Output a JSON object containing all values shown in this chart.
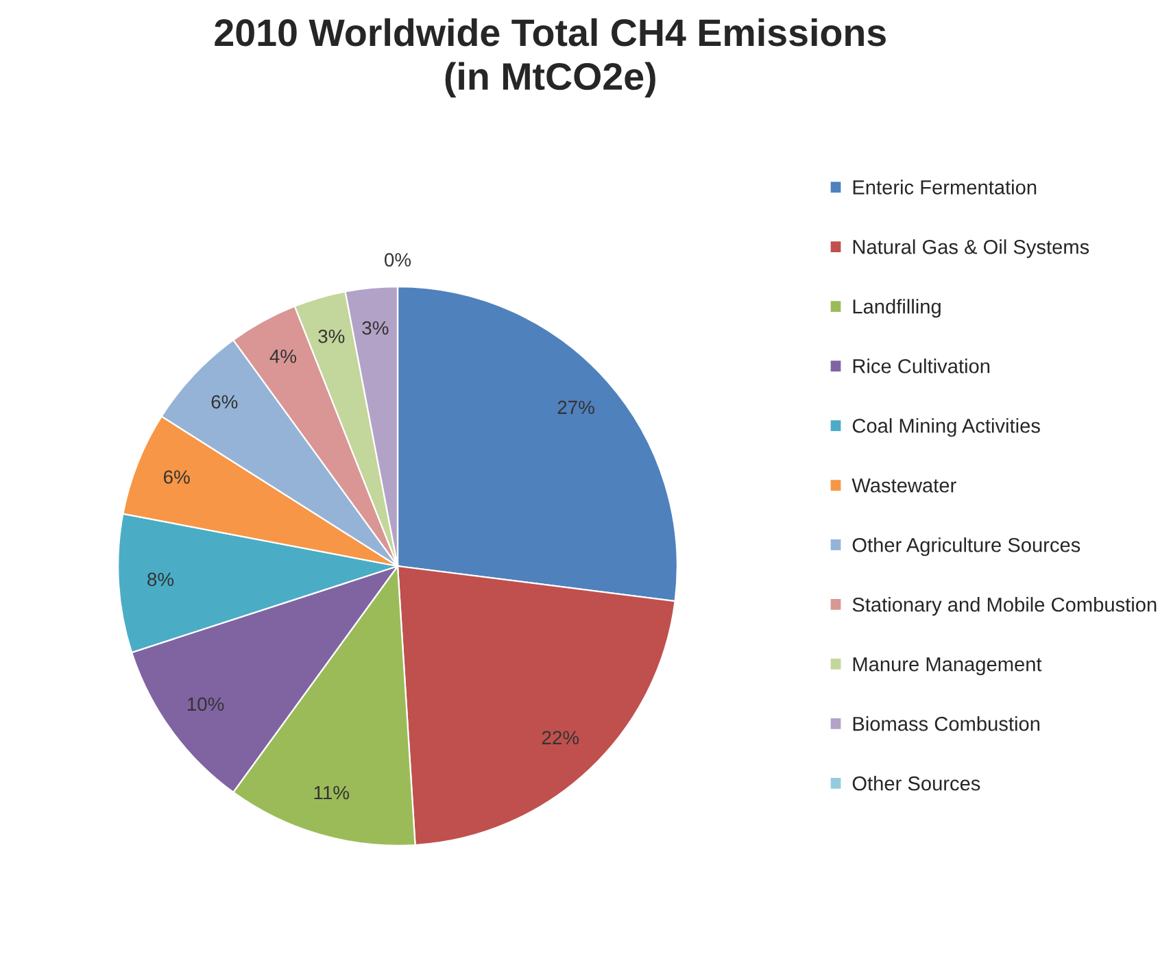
{
  "chart_data": {
    "type": "pie",
    "title": "2010 Worldwide Total CH4 Emissions\n(in MtCO2e)",
    "categories": [
      "Enteric Fermentation",
      "Natural Gas & Oil Systems",
      "Landfilling",
      "Rice Cultivation",
      "Coal Mining Activities",
      "Wastewater",
      "Other Agriculture Sources",
      "Stationary and Mobile Combustion",
      "Manure Management",
      "Biomass Combustion",
      "Other Sources"
    ],
    "values": [
      27,
      22,
      11,
      10,
      8,
      6,
      6,
      4,
      3,
      3,
      0
    ],
    "value_labels": [
      "27%",
      "22%",
      "11%",
      "10%",
      "8%",
      "6%",
      "6%",
      "4%",
      "3%",
      "3%",
      "0%"
    ],
    "colors": [
      "#4f81bd",
      "#c0504d",
      "#9bbb59",
      "#8064a2",
      "#4bacc6",
      "#f79646",
      "#95b3d7",
      "#d99694",
      "#c3d69b",
      "#b3a2c7",
      "#93cddd"
    ],
    "legend": "right"
  }
}
